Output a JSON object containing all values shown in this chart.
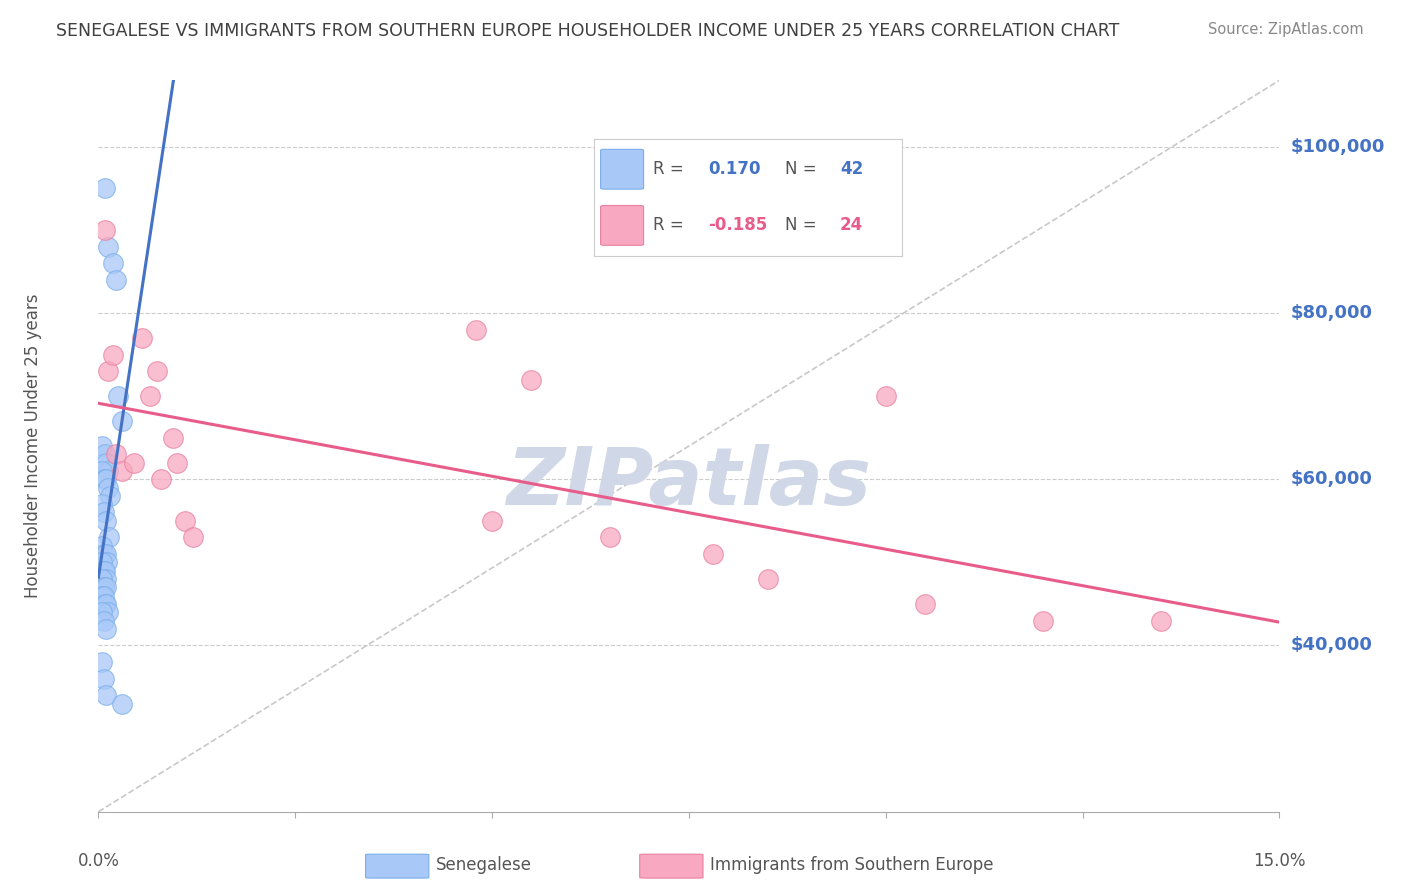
{
  "title": "SENEGALESE VS IMMIGRANTS FROM SOUTHERN EUROPE HOUSEHOLDER INCOME UNDER 25 YEARS CORRELATION CHART",
  "source": "Source: ZipAtlas.com",
  "ylabel": "Householder Income Under 25 years",
  "legend_label1": "Senegalese",
  "legend_label2": "Immigrants from Southern Europe",
  "R1": 0.17,
  "N1": 42,
  "R2": -0.185,
  "N2": 24,
  "watermark": "ZIPatlas",
  "xlim": [
    0.0,
    0.15
  ],
  "ylim": [
    20000,
    108000
  ],
  "yticks": [
    40000,
    60000,
    80000,
    100000
  ],
  "ytick_labels": [
    "$40,000",
    "$60,000",
    "$80,000",
    "$100,000"
  ],
  "blue_x": [
    0.0008,
    0.0012,
    0.0018,
    0.0022,
    0.0025,
    0.003,
    0.0005,
    0.0008,
    0.001,
    0.0012,
    0.0005,
    0.0008,
    0.001,
    0.0012,
    0.0015,
    0.0005,
    0.0007,
    0.001,
    0.0013,
    0.0005,
    0.0007,
    0.0009,
    0.0011,
    0.0005,
    0.0007,
    0.0008,
    0.001,
    0.0005,
    0.0007,
    0.0009,
    0.0005,
    0.0007,
    0.0008,
    0.001,
    0.0012,
    0.0005,
    0.0007,
    0.001,
    0.0005,
    0.0007,
    0.0009,
    0.003
  ],
  "blue_y": [
    95000,
    88000,
    86000,
    84000,
    70000,
    67000,
    64000,
    63000,
    62000,
    61000,
    61000,
    60000,
    60000,
    59000,
    58000,
    57000,
    56000,
    55000,
    53000,
    52000,
    51000,
    51000,
    50000,
    50000,
    49000,
    49000,
    48000,
    48000,
    47000,
    47000,
    46000,
    46000,
    45000,
    45000,
    44000,
    44000,
    43000,
    42000,
    38000,
    36000,
    34000,
    33000
  ],
  "pink_x": [
    0.0008,
    0.0012,
    0.0018,
    0.0022,
    0.003,
    0.0045,
    0.0055,
    0.0065,
    0.0075,
    0.008,
    0.0095,
    0.01,
    0.011,
    0.012,
    0.048,
    0.05,
    0.055,
    0.065,
    0.078,
    0.085,
    0.1,
    0.105,
    0.12,
    0.135
  ],
  "pink_y": [
    90000,
    73000,
    75000,
    63000,
    61000,
    62000,
    77000,
    70000,
    73000,
    60000,
    65000,
    62000,
    55000,
    53000,
    78000,
    55000,
    72000,
    53000,
    51000,
    48000,
    70000,
    45000,
    43000,
    43000
  ],
  "blue_color": "#a8c8f8",
  "blue_edge_color": "#7aaee8",
  "blue_line_color": "#4472c4",
  "pink_color": "#f8a8c0",
  "pink_edge_color": "#e880a0",
  "pink_line_color": "#e85c8a",
  "grid_color": "#cccccc",
  "title_color": "#404040",
  "source_color": "#888888",
  "right_axis_color": "#4472c4",
  "watermark_color": "#d0d8e8",
  "diag_color": "#bbbbbb"
}
